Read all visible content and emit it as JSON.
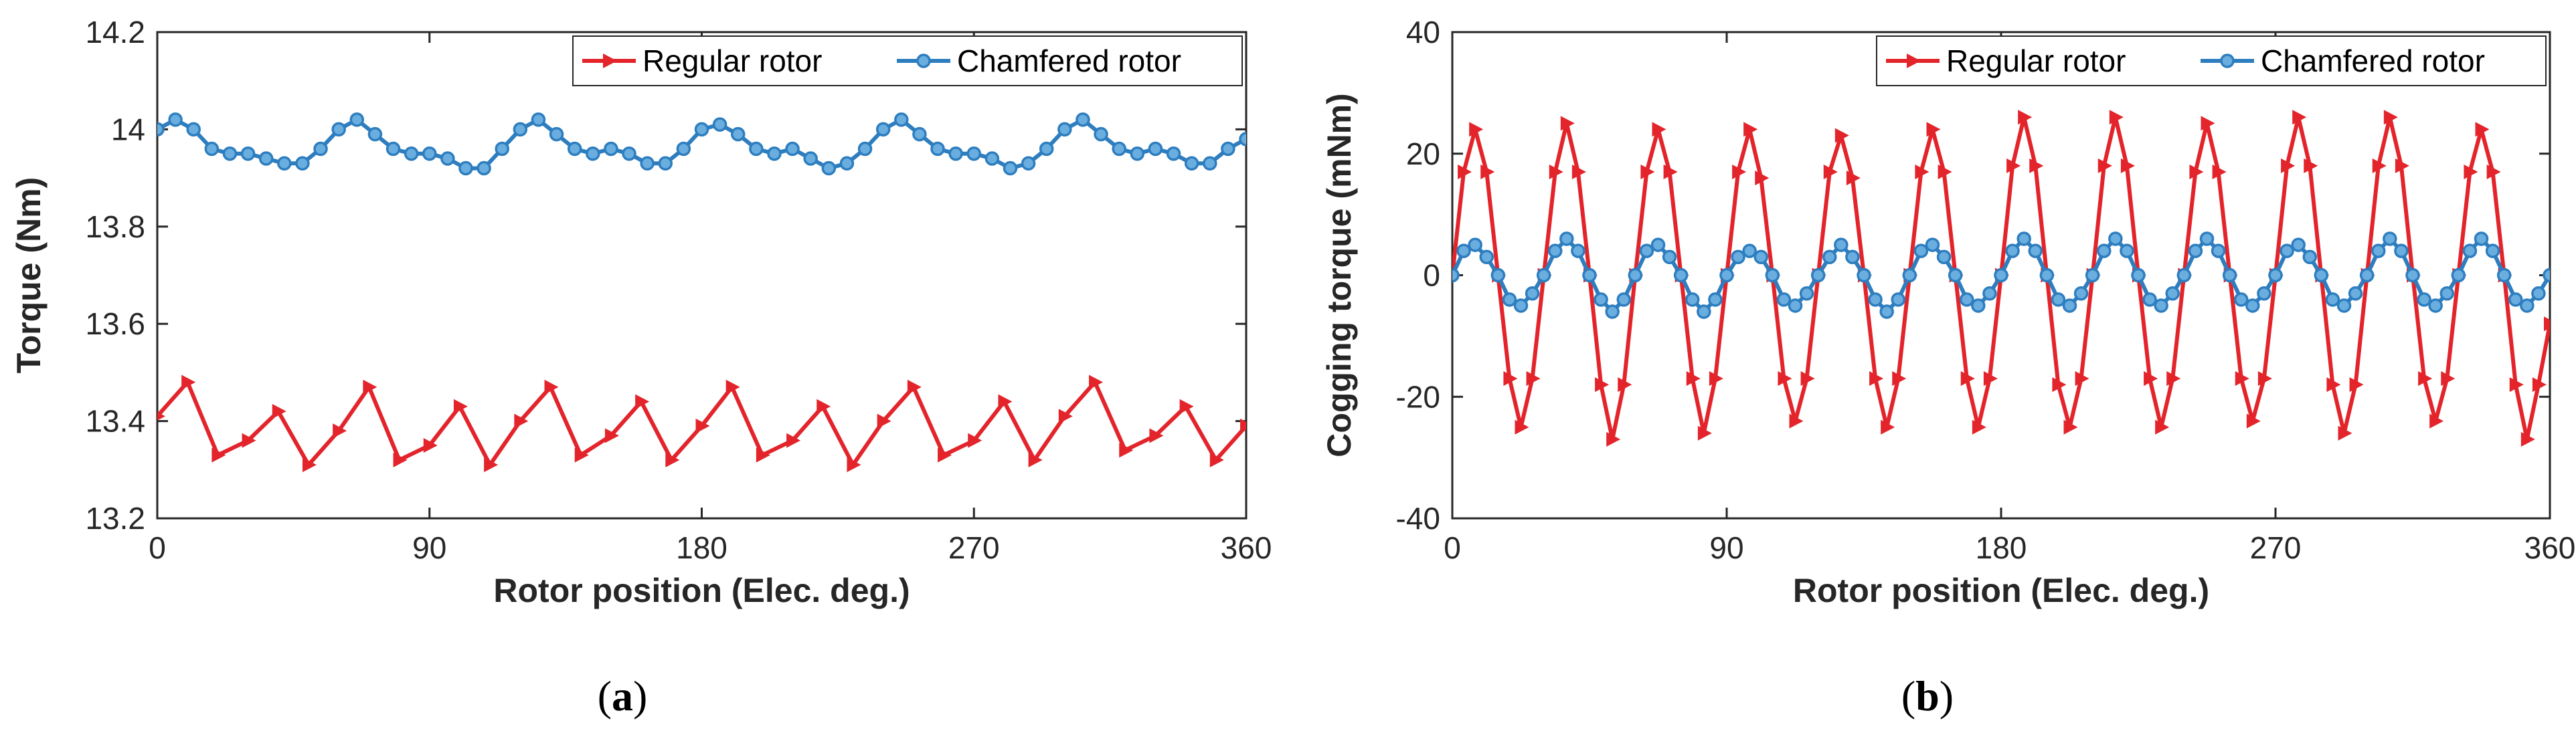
{
  "colors": {
    "regular": "#e3242b",
    "chamfered": "#2e7ebf",
    "axis": "#262626"
  },
  "chart_data": [
    {
      "type": "line",
      "id": "a",
      "caption": "a",
      "xlabel": "Rotor position (Elec. deg.)",
      "ylabel": "Torque (Nm)",
      "xlim": [
        0,
        360
      ],
      "ylim": [
        13.2,
        14.2
      ],
      "xticks": [
        "0",
        "90",
        "180",
        "270",
        "360"
      ],
      "yticks": [
        "13.2",
        "13.4",
        "13.6",
        "13.8",
        "14",
        "14.2"
      ],
      "grid": false,
      "legend_position": "top-right",
      "series": [
        {
          "name": "Regular rotor",
          "marker": "triangle-right",
          "x": [
            0,
            10,
            20,
            30,
            40,
            50,
            60,
            70,
            80,
            90,
            100,
            110,
            120,
            130,
            140,
            150,
            160,
            170,
            180,
            190,
            200,
            210,
            220,
            230,
            240,
            250,
            260,
            270,
            280,
            290,
            300,
            310,
            320,
            330,
            340,
            350,
            360
          ],
          "y": [
            13.41,
            13.48,
            13.33,
            13.36,
            13.42,
            13.31,
            13.38,
            13.47,
            13.32,
            13.35,
            13.43,
            13.31,
            13.4,
            13.47,
            13.33,
            13.37,
            13.44,
            13.32,
            13.39,
            13.47,
            13.33,
            13.36,
            13.43,
            13.31,
            13.4,
            13.47,
            13.33,
            13.36,
            13.44,
            13.32,
            13.41,
            13.48,
            13.34,
            13.37,
            13.43,
            13.32,
            13.39
          ]
        },
        {
          "name": "Chamfered rotor",
          "marker": "circle",
          "x": [
            0,
            6,
            12,
            18,
            24,
            30,
            36,
            42,
            48,
            54,
            60,
            66,
            72,
            78,
            84,
            90,
            96,
            102,
            108,
            114,
            120,
            126,
            132,
            138,
            144,
            150,
            156,
            162,
            168,
            174,
            180,
            186,
            192,
            198,
            204,
            210,
            216,
            222,
            228,
            234,
            240,
            246,
            252,
            258,
            264,
            270,
            276,
            282,
            288,
            294,
            300,
            306,
            312,
            318,
            324,
            330,
            336,
            342,
            348,
            354,
            360
          ],
          "y": [
            14.0,
            14.02,
            14.0,
            13.96,
            13.95,
            13.95,
            13.94,
            13.93,
            13.93,
            13.96,
            14.0,
            14.02,
            13.99,
            13.96,
            13.95,
            13.95,
            13.94,
            13.92,
            13.92,
            13.96,
            14.0,
            14.02,
            13.99,
            13.96,
            13.95,
            13.96,
            13.95,
            13.93,
            13.93,
            13.96,
            14.0,
            14.01,
            13.99,
            13.96,
            13.95,
            13.96,
            13.94,
            13.92,
            13.93,
            13.96,
            14.0,
            14.02,
            13.99,
            13.96,
            13.95,
            13.95,
            13.94,
            13.92,
            13.93,
            13.96,
            14.0,
            14.02,
            13.99,
            13.96,
            13.95,
            13.96,
            13.95,
            13.93,
            13.93,
            13.96,
            13.98
          ]
        }
      ]
    },
    {
      "type": "line",
      "id": "b",
      "caption": "b",
      "xlabel": "Rotor position (Elec. deg.)",
      "ylabel": "Cogging torque (mNm)",
      "xlim": [
        0,
        360
      ],
      "ylim": [
        -40,
        40
      ],
      "xticks": [
        "0",
        "90",
        "180",
        "270",
        "360"
      ],
      "yticks": [
        "-40",
        "-20",
        "0",
        "20",
        "40"
      ],
      "grid": false,
      "legend_position": "top-right",
      "series": [
        {
          "name": "Regular rotor",
          "marker": "triangle-right",
          "x": [
            0,
            3.75,
            7.5,
            11.25,
            15,
            18.75,
            22.5,
            26.25,
            30,
            33.75,
            37.5,
            41.25,
            45,
            48.75,
            52.5,
            56.25,
            60,
            63.75,
            67.5,
            71.25,
            75,
            78.75,
            82.5,
            86.25,
            90,
            93.75,
            97.5,
            101.25,
            105,
            108.75,
            112.5,
            116.25,
            120,
            123.75,
            127.5,
            131.25,
            135,
            138.75,
            142.5,
            146.25,
            150,
            153.75,
            157.5,
            161.25,
            165,
            168.75,
            172.5,
            176.25,
            180,
            183.75,
            187.5,
            191.25,
            195,
            198.75,
            202.5,
            206.25,
            210,
            213.75,
            217.5,
            221.25,
            225,
            228.75,
            232.5,
            236.25,
            240,
            243.75,
            247.5,
            251.25,
            255,
            258.75,
            262.5,
            266.25,
            270,
            273.75,
            277.5,
            281.25,
            285,
            288.75,
            292.5,
            296.25,
            300,
            303.75,
            307.5,
            311.25,
            315,
            318.75,
            322.5,
            326.25,
            330,
            333.75,
            337.5,
            341.25,
            345,
            348.75,
            352.5,
            356.25,
            360
          ],
          "y": [
            0,
            17,
            24,
            17,
            0,
            -17,
            -25,
            -17,
            0,
            17,
            25,
            17,
            0,
            -18,
            -27,
            -18,
            0,
            17,
            24,
            17,
            0,
            -17,
            -26,
            -17,
            0,
            17,
            24,
            16,
            0,
            -17,
            -24,
            -17,
            0,
            17,
            23,
            16,
            0,
            -17,
            -25,
            -17,
            0,
            17,
            24,
            17,
            0,
            -17,
            -25,
            -17,
            0,
            18,
            26,
            18,
            0,
            -18,
            -25,
            -17,
            0,
            18,
            26,
            18,
            0,
            -17,
            -25,
            -17,
            0,
            17,
            25,
            17,
            0,
            -17,
            -24,
            -17,
            0,
            18,
            26,
            18,
            0,
            -18,
            -26,
            -18,
            0,
            18,
            26,
            18,
            0,
            -17,
            -24,
            -17,
            0,
            17,
            24,
            17,
            0,
            -18,
            -27,
            -18,
            -8
          ]
        },
        {
          "name": "Chamfered rotor",
          "marker": "circle",
          "x": [
            0,
            3.75,
            7.5,
            11.25,
            15,
            18.75,
            22.5,
            26.25,
            30,
            33.75,
            37.5,
            41.25,
            45,
            48.75,
            52.5,
            56.25,
            60,
            63.75,
            67.5,
            71.25,
            75,
            78.75,
            82.5,
            86.25,
            90,
            93.75,
            97.5,
            101.25,
            105,
            108.75,
            112.5,
            116.25,
            120,
            123.75,
            127.5,
            131.25,
            135,
            138.75,
            142.5,
            146.25,
            150,
            153.75,
            157.5,
            161.25,
            165,
            168.75,
            172.5,
            176.25,
            180,
            183.75,
            187.5,
            191.25,
            195,
            198.75,
            202.5,
            206.25,
            210,
            213.75,
            217.5,
            221.25,
            225,
            228.75,
            232.5,
            236.25,
            240,
            243.75,
            247.5,
            251.25,
            255,
            258.75,
            262.5,
            266.25,
            270,
            273.75,
            277.5,
            281.25,
            285,
            288.75,
            292.5,
            296.25,
            300,
            303.75,
            307.5,
            311.25,
            315,
            318.75,
            322.5,
            326.25,
            330,
            333.75,
            337.5,
            341.25,
            345,
            348.75,
            352.5,
            356.25,
            360
          ],
          "y": [
            0,
            4,
            5,
            3,
            0,
            -4,
            -5,
            -3,
            0,
            4,
            6,
            4,
            0,
            -4,
            -6,
            -4,
            0,
            4,
            5,
            3,
            0,
            -4,
            -6,
            -4,
            0,
            3,
            4,
            3,
            0,
            -4,
            -5,
            -3,
            0,
            3,
            5,
            3,
            0,
            -4,
            -6,
            -4,
            0,
            4,
            5,
            3,
            0,
            -4,
            -5,
            -3,
            0,
            4,
            6,
            4,
            0,
            -4,
            -5,
            -3,
            0,
            4,
            6,
            4,
            0,
            -4,
            -5,
            -3,
            0,
            4,
            6,
            4,
            0,
            -4,
            -5,
            -3,
            0,
            4,
            5,
            3,
            0,
            -4,
            -5,
            -3,
            0,
            4,
            6,
            4,
            0,
            -4,
            -5,
            -3,
            0,
            4,
            6,
            4,
            0,
            -4,
            -5,
            -3,
            0
          ]
        }
      ]
    }
  ]
}
